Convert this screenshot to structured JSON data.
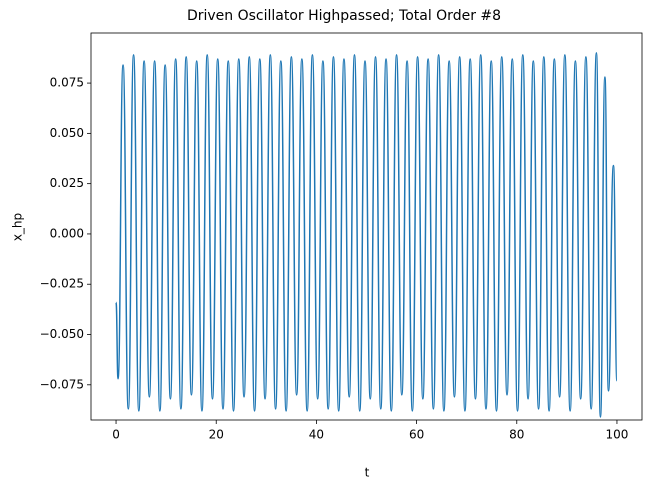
{
  "chart_data": {
    "type": "line",
    "title": "Driven Oscillator Highpassed; Total Order #8",
    "x_label": "t",
    "y_label": "x_hp",
    "x": [
      0,
      0.4,
      1.4,
      2.45,
      3.5,
      4.55,
      5.6,
      6.65,
      7.7,
      8.75,
      9.8,
      10.85,
      11.9,
      12.95,
      14,
      15.05,
      16.1,
      17.15,
      18.2,
      19.25,
      20.3,
      21.35,
      22.4,
      23.45,
      24.5,
      25.55,
      26.6,
      27.65,
      28.7,
      29.75,
      30.8,
      31.85,
      32.9,
      33.95,
      35,
      36.05,
      37.1,
      38.15,
      39.2,
      40.25,
      41.3,
      42.35,
      43.4,
      44.45,
      45.5,
      46.55,
      47.6,
      48.65,
      49.7,
      50.75,
      51.8,
      52.85,
      53.9,
      54.95,
      56,
      57.05,
      58.1,
      59.15,
      60.2,
      61.25,
      62.3,
      63.35,
      64.4,
      65.45,
      66.5,
      67.55,
      68.6,
      69.65,
      70.7,
      71.75,
      72.8,
      73.85,
      74.9,
      75.95,
      77,
      78.05,
      79.1,
      80.15,
      81.2,
      82.25,
      83.3,
      84.35,
      85.4,
      86.45,
      87.5,
      88.55,
      89.6,
      90.65,
      91.7,
      92.75,
      93.8,
      94.85,
      95.9,
      96.7,
      97.6,
      98.3,
      99.3,
      100
    ],
    "series": [
      {
        "color": "#1f77b4",
        "values": [
          -0.034,
          -0.072,
          0.084,
          -0.087,
          0.089,
          -0.088,
          0.086,
          -0.081,
          0.086,
          -0.088,
          0.084,
          -0.082,
          0.087,
          -0.087,
          0.088,
          -0.08,
          0.086,
          -0.088,
          0.089,
          -0.082,
          0.087,
          -0.087,
          0.086,
          -0.088,
          0.087,
          -0.081,
          0.088,
          -0.088,
          0.087,
          -0.082,
          0.089,
          -0.087,
          0.086,
          -0.088,
          0.088,
          -0.08,
          0.087,
          -0.088,
          0.089,
          -0.082,
          0.086,
          -0.087,
          0.088,
          -0.088,
          0.087,
          -0.081,
          0.089,
          -0.088,
          0.086,
          -0.082,
          0.088,
          -0.087,
          0.087,
          -0.088,
          0.089,
          -0.08,
          0.086,
          -0.088,
          0.088,
          -0.082,
          0.087,
          -0.087,
          0.089,
          -0.088,
          0.086,
          -0.081,
          0.088,
          -0.088,
          0.087,
          -0.082,
          0.089,
          -0.087,
          0.086,
          -0.088,
          0.088,
          -0.08,
          0.087,
          -0.088,
          0.089,
          -0.082,
          0.086,
          -0.087,
          0.088,
          -0.088,
          0.087,
          -0.081,
          0.089,
          -0.088,
          0.086,
          -0.082,
          0.088,
          -0.087,
          0.09,
          -0.091,
          0.078,
          -0.078,
          0.034,
          -0.073
        ]
      }
    ],
    "xlim": [
      -5,
      105
    ],
    "xticks": [
      0,
      20,
      40,
      60,
      80,
      100
    ],
    "ylim": [
      -0.0925,
      0.0999
    ],
    "yticks": [
      {
        "value": -0.075,
        "label": "−0.075"
      },
      {
        "value": -0.05,
        "label": "−0.050"
      },
      {
        "value": -0.025,
        "label": "−0.025"
      },
      {
        "value": 0,
        "label": "0.000"
      },
      {
        "value": 0.025,
        "label": "0.025"
      },
      {
        "value": 0.05,
        "label": "0.050"
      },
      {
        "value": 0.075,
        "label": "0.075"
      }
    ],
    "grid": false
  }
}
